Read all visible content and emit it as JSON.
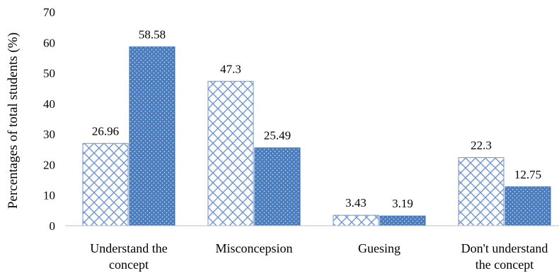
{
  "chart_data": {
    "type": "bar",
    "title": "",
    "xlabel": "",
    "ylabel": "Percentages of total students (%)",
    "ylim": [
      0,
      70
    ],
    "yticks": [
      0,
      10,
      20,
      30,
      40,
      50,
      60,
      70
    ],
    "grid": false,
    "legend": "none",
    "categories": [
      [
        "Understand the",
        "concept"
      ],
      [
        "Misconcepsion"
      ],
      [
        "Guesing"
      ],
      [
        "Don't understand",
        "the concept"
      ]
    ],
    "series": [
      {
        "pattern": "crosshatch",
        "color": "#4a7ec0",
        "values": [
          26.96,
          47.3,
          3.43,
          22.3
        ],
        "labels": [
          "26.96",
          "47.3",
          "3.43",
          "22.3"
        ]
      },
      {
        "pattern": "dotted-solid",
        "color": "#4a7ec0",
        "values": [
          58.58,
          25.49,
          3.19,
          12.75
        ],
        "labels": [
          "58.58",
          "25.49",
          "3.19",
          "12.75"
        ]
      }
    ]
  }
}
